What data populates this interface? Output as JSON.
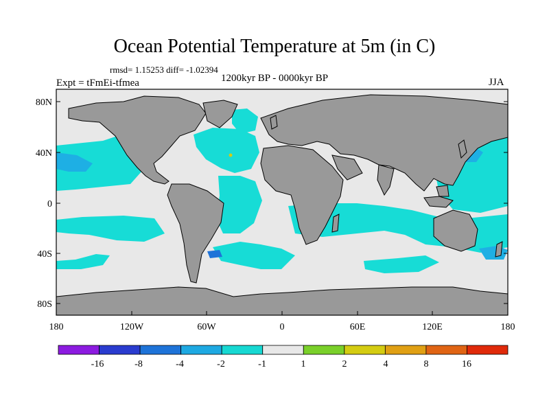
{
  "title": "Ocean Potential Temperature at 5m (in C)",
  "stats": "rmsd= 1.15253 diff= -1.02394",
  "experiment": "Expt = tFmEi-tfmea",
  "period": "1200kyr BP - 0000kyr BP",
  "season": "JJA",
  "colors": {
    "land": "#999999",
    "near_zero": "#e8e8e8",
    "cyan": "#17dcd6",
    "light_blue": "#1eafe4",
    "mid_blue": "#1f7ad9",
    "blue": "#1c3cd1",
    "purple": "#8024e0"
  },
  "axes": {
    "lat_labels": [
      "80N",
      "40N",
      "0",
      "40S",
      "80S"
    ],
    "lon_labels": [
      "180",
      "120W",
      "60W",
      "0",
      "60E",
      "120E",
      "180"
    ]
  },
  "colorbar": {
    "levels": [
      "-16",
      "-8",
      "-4",
      "-2",
      "-1",
      "1",
      "2",
      "4",
      "8",
      "16"
    ],
    "colors": [
      "#8c1be0",
      "#2a3ccf",
      "#1e73d8",
      "#1ea9e2",
      "#17d8d2",
      "#e8e8e8",
      "#7ad02a",
      "#d4cc12",
      "#e0a014",
      "#e06414",
      "#e02a0a"
    ]
  }
}
